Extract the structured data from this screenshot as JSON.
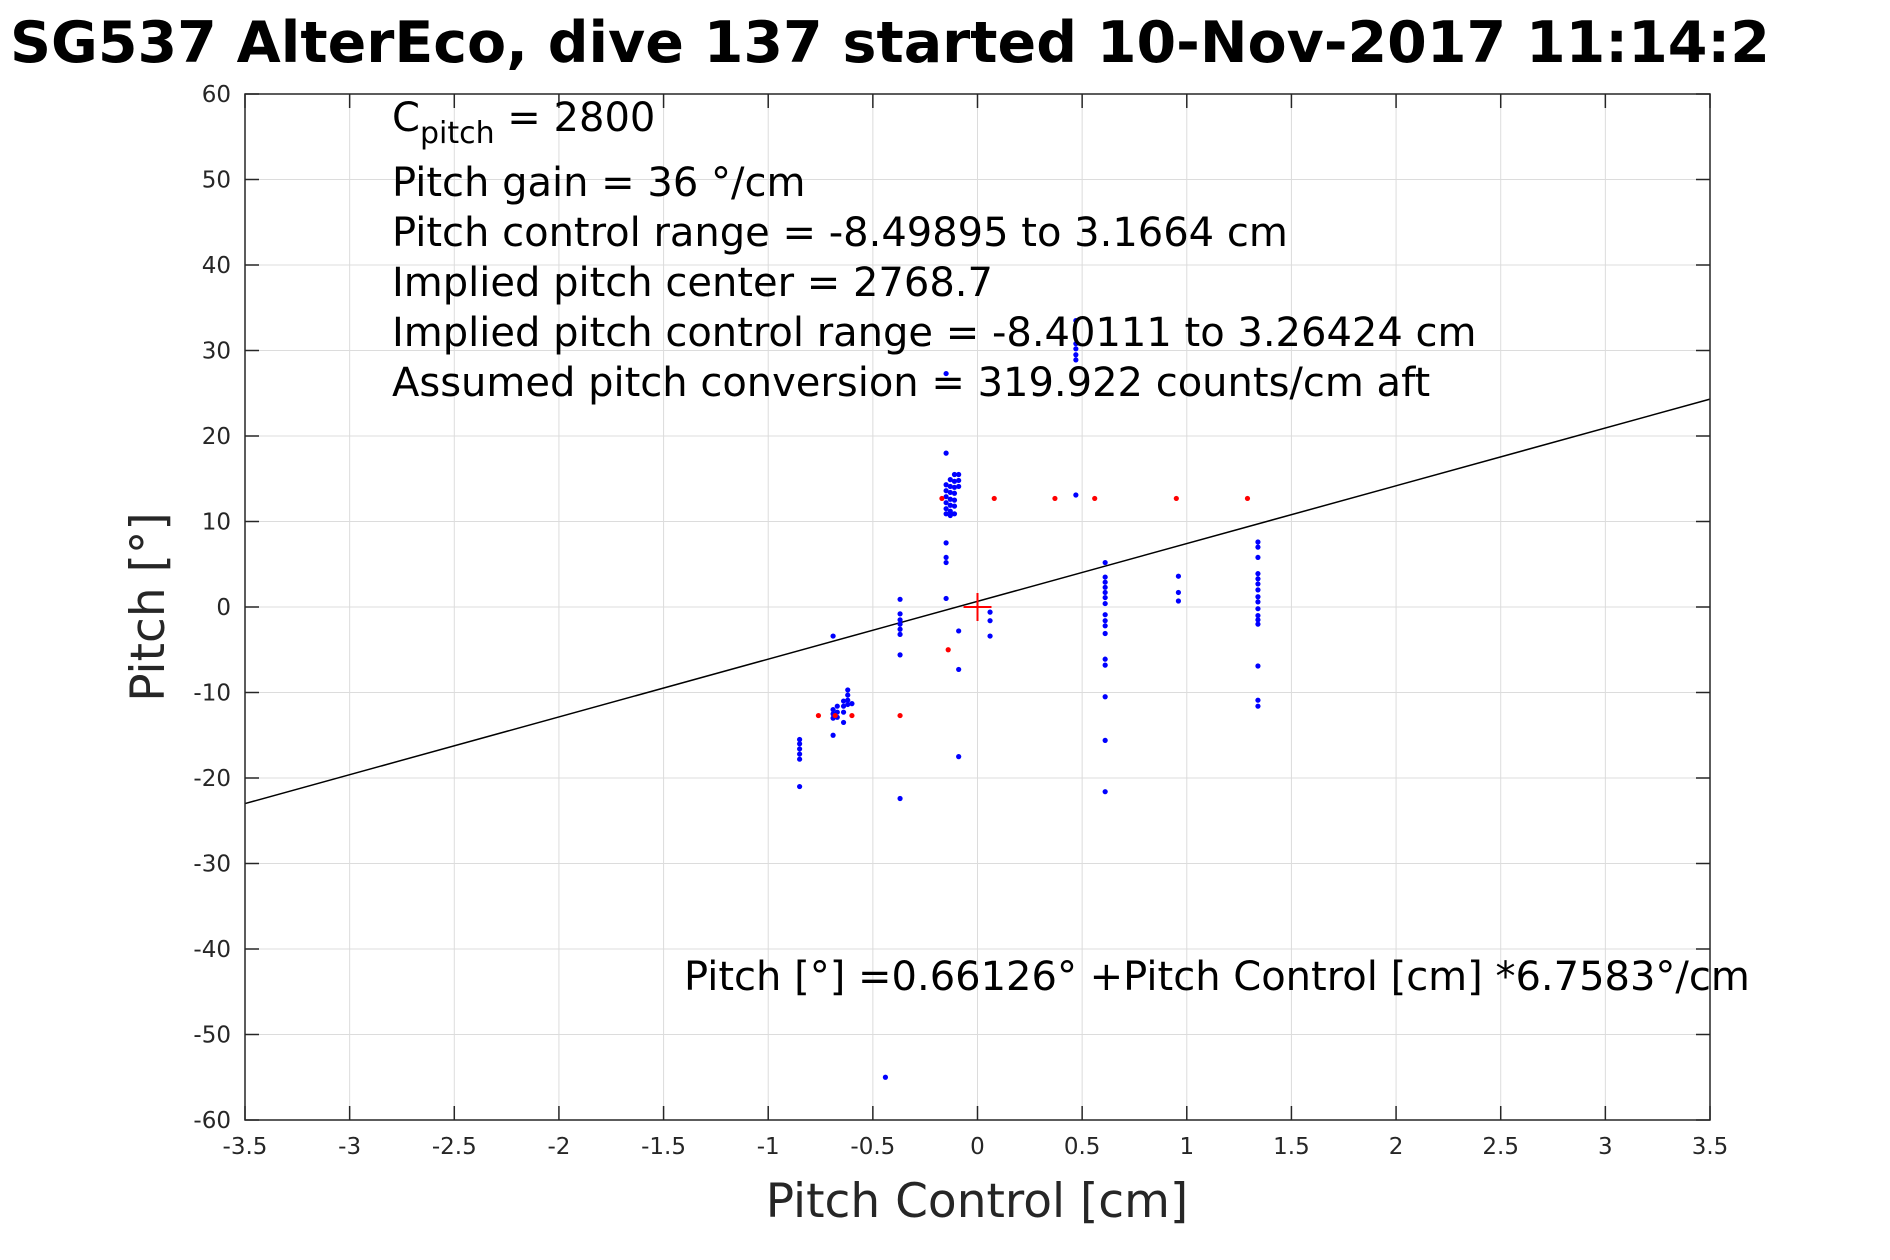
{
  "title": "SG537 AlterEco, dive 137 started 10-Nov-2017 11:14:2",
  "colors": {
    "dive_points": "#0000ff",
    "climb_points": "#ff0000",
    "fit_line": "#000000",
    "center_marker": "#ff0000",
    "grid": "#dcdcdc",
    "axes": "#262626"
  },
  "annotations": {
    "c_pitch_symbol": "C",
    "c_pitch_subscript": "pitch",
    "c_pitch_value": " = 2800",
    "pitch_gain": "Pitch gain = 36 °/cm",
    "pitch_control_range": "Pitch control range = -8.49895 to 3.1664 cm",
    "implied_pitch_center": "Implied pitch center = 2768.7",
    "implied_pitch_control_range": "Implied pitch control range = -8.40111 to 3.26424 cm",
    "assumed_pitch_conversion": "Assumed pitch conversion = 319.922 counts/cm aft",
    "fit_equation": "Pitch [°] =0.66126° +Pitch Control [cm] *6.7583°/cm"
  },
  "chart_data": {
    "type": "scatter",
    "xlabel": "Pitch Control [cm]",
    "ylabel": "Pitch [°]",
    "xlim": [
      -3.5,
      3.5
    ],
    "ylim": [
      -60,
      60
    ],
    "xticks": [
      -3.5,
      -3,
      -2.5,
      -2,
      -1.5,
      -1,
      -0.5,
      0,
      0.5,
      1,
      1.5,
      2,
      2.5,
      3,
      3.5
    ],
    "xtick_labels": [
      "-3.5",
      "-3",
      "-2.5",
      "-2",
      "-1.5",
      "-1",
      "-0.5",
      "0",
      "0.5",
      "1",
      "1.5",
      "2",
      "2.5",
      "3",
      "3.5"
    ],
    "yticks": [
      -60,
      -50,
      -40,
      -30,
      -20,
      -10,
      0,
      10,
      20,
      30,
      40,
      50,
      60
    ],
    "ytick_labels": [
      "-60",
      "-50",
      "-40",
      "-30",
      "-20",
      "-10",
      "0",
      "10",
      "20",
      "30",
      "40",
      "50",
      "60"
    ],
    "grid": true,
    "fit_line": {
      "intercept": 0.66126,
      "slope": 6.7583
    },
    "center_marker": {
      "x": 0,
      "y": 0
    },
    "series": [
      {
        "color": "#0000ff",
        "points": [
          [
            -0.85,
            -15.5
          ],
          [
            -0.85,
            -16.0
          ],
          [
            -0.85,
            -16.6
          ],
          [
            -0.85,
            -17.2
          ],
          [
            -0.85,
            -17.8
          ],
          [
            -0.85,
            -21.0
          ],
          [
            -0.69,
            -3.4
          ],
          [
            -0.69,
            -12.0
          ],
          [
            -0.69,
            -12.5
          ],
          [
            -0.69,
            -13.0
          ],
          [
            -0.69,
            -15.0
          ],
          [
            -0.67,
            -11.6
          ],
          [
            -0.67,
            -12.3
          ],
          [
            -0.67,
            -12.9
          ],
          [
            -0.64,
            -11.0
          ],
          [
            -0.64,
            -11.6
          ],
          [
            -0.64,
            -12.3
          ],
          [
            -0.64,
            -13.5
          ],
          [
            -0.62,
            -9.7
          ],
          [
            -0.62,
            -10.3
          ],
          [
            -0.62,
            -10.9
          ],
          [
            -0.62,
            -11.4
          ],
          [
            -0.6,
            -11.3
          ],
          [
            -0.37,
            0.9
          ],
          [
            -0.37,
            -0.8
          ],
          [
            -0.37,
            -1.5
          ],
          [
            -0.37,
            -2.0
          ],
          [
            -0.37,
            -2.6
          ],
          [
            -0.37,
            -3.2
          ],
          [
            -0.37,
            -5.6
          ],
          [
            -0.37,
            -22.4
          ],
          [
            -0.44,
            -55.0
          ],
          [
            -0.15,
            18.0
          ],
          [
            -0.15,
            14.3
          ],
          [
            -0.15,
            13.6
          ],
          [
            -0.15,
            12.9
          ],
          [
            -0.15,
            12.2
          ],
          [
            -0.15,
            11.5
          ],
          [
            -0.15,
            10.9
          ],
          [
            -0.15,
            7.5
          ],
          [
            -0.15,
            5.8
          ],
          [
            -0.15,
            5.2
          ],
          [
            -0.15,
            1.0
          ],
          [
            -0.15,
            27.3
          ],
          [
            -0.13,
            14.9
          ],
          [
            -0.13,
            14.1
          ],
          [
            -0.13,
            13.4
          ],
          [
            -0.13,
            12.6
          ],
          [
            -0.13,
            11.9
          ],
          [
            -0.13,
            11.2
          ],
          [
            -0.13,
            10.7
          ],
          [
            -0.11,
            15.5
          ],
          [
            -0.11,
            14.7
          ],
          [
            -0.11,
            14.0
          ],
          [
            -0.11,
            13.3
          ],
          [
            -0.11,
            12.5
          ],
          [
            -0.11,
            11.8
          ],
          [
            -0.11,
            10.9
          ],
          [
            -0.09,
            15.5
          ],
          [
            -0.09,
            14.8
          ],
          [
            -0.09,
            14.1
          ],
          [
            -0.09,
            -2.8
          ],
          [
            -0.09,
            -7.3
          ],
          [
            -0.09,
            -17.5
          ],
          [
            0.06,
            -0.6
          ],
          [
            0.06,
            -1.6
          ],
          [
            0.06,
            -3.4
          ],
          [
            0.47,
            33.5
          ],
          [
            0.47,
            30.8
          ],
          [
            0.47,
            30.2
          ],
          [
            0.47,
            29.5
          ],
          [
            0.47,
            28.9
          ],
          [
            0.47,
            13.1
          ],
          [
            0.61,
            5.2
          ],
          [
            0.61,
            3.5
          ],
          [
            0.61,
            2.9
          ],
          [
            0.61,
            2.3
          ],
          [
            0.61,
            1.7
          ],
          [
            0.61,
            1.1
          ],
          [
            0.61,
            0.4
          ],
          [
            0.61,
            -0.9
          ],
          [
            0.61,
            -1.6
          ],
          [
            0.61,
            -2.2
          ],
          [
            0.61,
            -3.1
          ],
          [
            0.61,
            -6.1
          ],
          [
            0.61,
            -6.8
          ],
          [
            0.61,
            -10.5
          ],
          [
            0.61,
            -15.6
          ],
          [
            0.61,
            -21.6
          ],
          [
            0.96,
            3.6
          ],
          [
            0.96,
            1.7
          ],
          [
            0.96,
            0.7
          ],
          [
            1.34,
            7.6
          ],
          [
            1.34,
            7.0
          ],
          [
            1.34,
            5.8
          ],
          [
            1.34,
            3.9
          ],
          [
            1.34,
            3.3
          ],
          [
            1.34,
            2.7
          ],
          [
            1.34,
            2.0
          ],
          [
            1.34,
            1.2
          ],
          [
            1.34,
            0.6
          ],
          [
            1.34,
            -0.2
          ],
          [
            1.34,
            -1.0
          ],
          [
            1.34,
            -1.5
          ],
          [
            1.34,
            -2.0
          ],
          [
            1.34,
            -6.9
          ],
          [
            1.34,
            -10.9
          ],
          [
            1.34,
            -11.6
          ]
        ]
      },
      {
        "color": "#ff0000",
        "points": [
          [
            -0.76,
            -12.7
          ],
          [
            -0.68,
            -12.7
          ],
          [
            -0.6,
            -12.7
          ],
          [
            -0.37,
            -12.7
          ],
          [
            -0.14,
            -5.0
          ],
          [
            -0.17,
            12.7
          ],
          [
            0.08,
            12.7
          ],
          [
            0.37,
            12.7
          ],
          [
            0.56,
            12.7
          ],
          [
            0.95,
            12.7
          ],
          [
            1.29,
            12.7
          ]
        ]
      }
    ]
  }
}
